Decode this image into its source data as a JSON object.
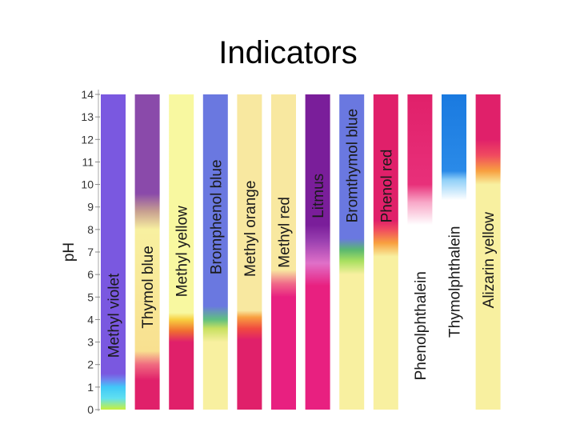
{
  "slide": {
    "title": "Indicators"
  },
  "chart_data": {
    "type": "ph-indicator-bars",
    "title": "Indicators",
    "ylabel": "pH",
    "ylim": [
      0,
      14
    ],
    "yticks": [
      0,
      1,
      2,
      3,
      4,
      5,
      6,
      7,
      8,
      9,
      10,
      11,
      12,
      13,
      14
    ],
    "indicators": [
      {
        "name": "Methyl violet",
        "stops": [
          [
            0,
            "#c8f03c"
          ],
          [
            0.5,
            "#60e0f0"
          ],
          [
            1.0,
            "#40c8f8"
          ],
          [
            1.3,
            "#6a8af0"
          ],
          [
            1.6,
            "#7a58e0"
          ],
          [
            14,
            "#7a58e0"
          ]
        ]
      },
      {
        "name": "Thymol blue",
        "stops": [
          [
            0,
            "#e0206a"
          ],
          [
            1.3,
            "#e0206a"
          ],
          [
            2.0,
            "#f06a80"
          ],
          [
            2.6,
            "#f8e090"
          ],
          [
            8.0,
            "#f8f0a0"
          ],
          [
            8.8,
            "#c8a090"
          ],
          [
            9.6,
            "#8a4aaa"
          ],
          [
            14,
            "#8a4aaa"
          ]
        ]
      },
      {
        "name": "Methyl yellow",
        "stops": [
          [
            0,
            "#e0206a"
          ],
          [
            3.0,
            "#e0206a"
          ],
          [
            3.5,
            "#f07030"
          ],
          [
            4.0,
            "#f8d040"
          ],
          [
            4.3,
            "#f8f8a0"
          ],
          [
            14,
            "#f8f8a0"
          ]
        ]
      },
      {
        "name": "Bromphenol blue",
        "stops": [
          [
            0,
            "#f8f0a0"
          ],
          [
            3.0,
            "#f8f0a0"
          ],
          [
            3.6,
            "#c8e060"
          ],
          [
            4.0,
            "#60c080"
          ],
          [
            4.6,
            "#6a78e0"
          ],
          [
            14,
            "#6a78e0"
          ]
        ]
      },
      {
        "name": "Methyl orange",
        "stops": [
          [
            0,
            "#e0206a"
          ],
          [
            3.1,
            "#e0206a"
          ],
          [
            3.6,
            "#f04a40"
          ],
          [
            4.1,
            "#f8a040"
          ],
          [
            4.4,
            "#f8e8a0"
          ],
          [
            14,
            "#f8e8a0"
          ]
        ]
      },
      {
        "name": "Methyl red",
        "stops": [
          [
            0,
            "#e82080"
          ],
          [
            5.0,
            "#e82080"
          ],
          [
            5.6,
            "#f06a8a"
          ],
          [
            6.2,
            "#f8e8a0"
          ],
          [
            14,
            "#f8e8a0"
          ]
        ]
      },
      {
        "name": "Litmus",
        "stops": [
          [
            0,
            "#e82080"
          ],
          [
            5.5,
            "#e82080"
          ],
          [
            6.5,
            "#e070c8"
          ],
          [
            7.5,
            "#9a40b0"
          ],
          [
            8.2,
            "#7a1e9a"
          ],
          [
            14,
            "#7a1e9a"
          ]
        ]
      },
      {
        "name": "Bromthymol blue",
        "stops": [
          [
            0,
            "#f8f0a0"
          ],
          [
            6.0,
            "#f8f0a0"
          ],
          [
            6.6,
            "#a8e060"
          ],
          [
            7.1,
            "#5ab870"
          ],
          [
            7.6,
            "#6a78e0"
          ],
          [
            14,
            "#6a78e0"
          ]
        ]
      },
      {
        "name": "Phenol red",
        "stops": [
          [
            0,
            "#f8f0a0"
          ],
          [
            6.8,
            "#f8f0a0"
          ],
          [
            7.4,
            "#f8a040"
          ],
          [
            8.0,
            "#f04a60"
          ],
          [
            8.4,
            "#e0206a"
          ],
          [
            14,
            "#e0206a"
          ]
        ]
      },
      {
        "name": "Phenolphthalein",
        "stops": [
          [
            0,
            "#ffffff"
          ],
          [
            8.2,
            "#ffffff"
          ],
          [
            9.2,
            "#f8a8c8"
          ],
          [
            10.0,
            "#e8307a"
          ],
          [
            14,
            "#e0206a"
          ]
        ]
      },
      {
        "name": "Thymolphthalein",
        "stops": [
          [
            0,
            "#ffffff"
          ],
          [
            9.3,
            "#ffffff"
          ],
          [
            10.2,
            "#90d0f8"
          ],
          [
            10.6,
            "#2a8ae8"
          ],
          [
            14,
            "#1a7ae0"
          ]
        ]
      },
      {
        "name": "Alizarin yellow",
        "stops": [
          [
            0,
            "#f8f0a0"
          ],
          [
            10.0,
            "#f8f0a0"
          ],
          [
            10.6,
            "#f8a040"
          ],
          [
            11.3,
            "#f04a60"
          ],
          [
            12.0,
            "#e0206a"
          ],
          [
            14,
            "#e0206a"
          ]
        ]
      }
    ]
  }
}
